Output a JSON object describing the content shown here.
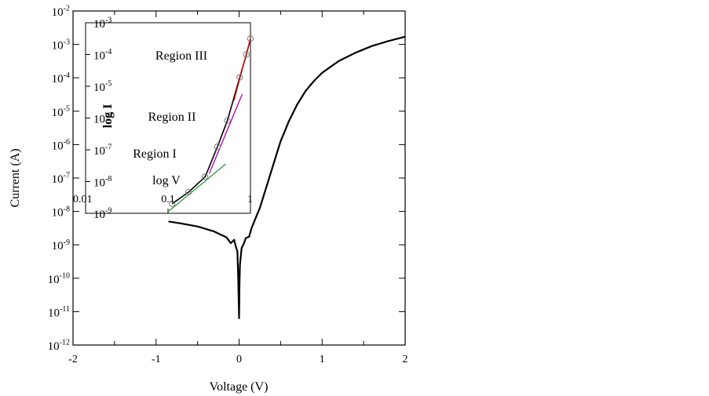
{
  "chart_data": [
    {
      "type": "line",
      "title": "",
      "xlabel": "Voltage (V)",
      "ylabel": "Current (A)",
      "y_scale": "log",
      "xlim": [
        -2,
        2
      ],
      "ylim_exponent": [
        -12,
        -2
      ],
      "x_ticks": [
        "-2",
        "-1",
        "0",
        "1",
        "2"
      ],
      "y_tick_base": "10",
      "y_tick_exponents": [
        "-12",
        "-11",
        "-10",
        "-9",
        "-8",
        "-7",
        "-6",
        "-5",
        "-4",
        "-3",
        "-2"
      ],
      "grid": false,
      "series": [
        {
          "color": "#000000",
          "x": [
            -0.85,
            -0.7,
            -0.5,
            -0.3,
            -0.15,
            -0.1,
            -0.06,
            -0.04,
            -0.02,
            -0.01,
            0.0,
            0.005,
            0.01,
            0.03,
            0.06,
            0.08,
            0.1,
            0.12,
            0.15,
            0.2,
            0.25,
            0.3,
            0.35,
            0.4,
            0.45,
            0.5,
            0.55,
            0.6,
            0.7,
            0.8,
            0.9,
            1.0,
            1.2,
            1.4,
            1.6,
            1.8,
            2.0
          ],
          "log10_y": [
            -8.3,
            -8.36,
            -8.45,
            -8.6,
            -8.78,
            -8.95,
            -8.85,
            -9.05,
            -9.2,
            -10.0,
            -11.2,
            -10.2,
            -9.6,
            -9.1,
            -8.95,
            -8.8,
            -8.78,
            -8.76,
            -8.5,
            -8.2,
            -7.9,
            -7.5,
            -7.1,
            -6.7,
            -6.3,
            -5.9,
            -5.6,
            -5.3,
            -4.8,
            -4.4,
            -4.1,
            -3.85,
            -3.5,
            -3.25,
            -3.05,
            -2.9,
            -2.77
          ]
        }
      ]
    },
    {
      "type": "scatter",
      "title": "",
      "xlabel": "log V",
      "ylabel": "log I",
      "x_scale": "log",
      "y_scale": "log",
      "x_ticks": [
        "0.01",
        "0.1",
        "1"
      ],
      "xlim_exponent": [
        -2,
        0
      ],
      "ylim_exponent": [
        -9,
        -3
      ],
      "y_tick_base": "10",
      "y_tick_exponents": [
        "-9",
        "-8",
        "-7",
        "-6",
        "-5",
        "-4",
        "-3"
      ],
      "annotations": [
        "Region III",
        "Region II",
        "Region I"
      ],
      "points": {
        "log10_x": [
          -0.95,
          -0.75,
          -0.55,
          -0.4,
          -0.28,
          -0.13,
          -0.05,
          0.0
        ],
        "log10_y": [
          -8.7,
          -8.33,
          -7.85,
          -6.9,
          -6.08,
          -4.72,
          -4.0,
          -3.5
        ]
      },
      "series": [
        {
          "color": "#000000",
          "log10_x": [
            -0.95,
            -0.75,
            -0.55,
            -0.4,
            -0.28,
            -0.13,
            -0.05,
            0.0
          ],
          "log10_y": [
            -8.7,
            -8.33,
            -7.85,
            -6.9,
            -6.08,
            -4.72,
            -4.0,
            -3.5
          ]
        },
        {
          "color": "#2e9a3c",
          "log10_x": [
            -1.0,
            -0.3
          ],
          "log10_y": [
            -8.95,
            -7.45
          ]
        },
        {
          "color": "#b000b0",
          "log10_x": [
            -0.5,
            -0.1
          ],
          "log10_y": [
            -7.75,
            -5.25
          ]
        },
        {
          "color": "#e00000",
          "log10_x": [
            -0.2,
            0.0
          ],
          "log10_y": [
            -5.45,
            -3.5
          ]
        }
      ]
    }
  ]
}
